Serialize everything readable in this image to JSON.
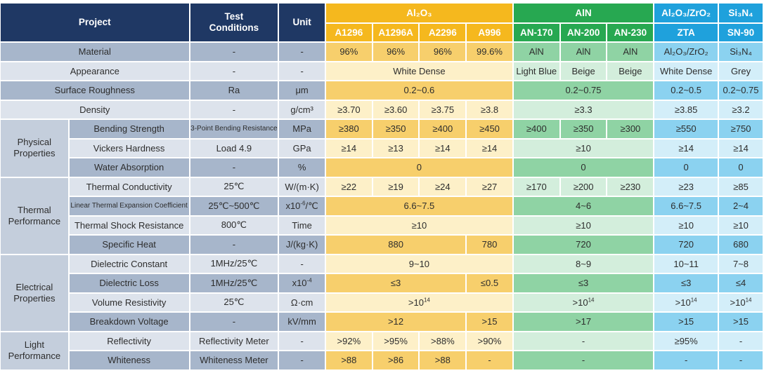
{
  "header": {
    "project": "Project",
    "test_conditions": "Test\nConditions",
    "unit": "Unit",
    "groups": [
      "Al₂O₃",
      "AlN",
      "Al₂O₃/ZrO₂",
      "Si₃N₄"
    ],
    "grades": [
      "A1296",
      "A1296A",
      "A2296",
      "A996",
      "AN-170",
      "AN-200",
      "AN-230",
      "ZTA",
      "SN-90"
    ]
  },
  "rows": {
    "material": {
      "label": "Material",
      "cond": "-",
      "unit": "-",
      "vals": [
        "96%",
        "96%",
        "96%",
        "99.6%",
        "AlN",
        "AlN",
        "AlN",
        "Al₂O₃/ZrO₂",
        "Si₃N₄"
      ]
    },
    "appearance": {
      "label": "Appearance",
      "cond": "-",
      "unit": "-",
      "vals": [
        "White Dense",
        "Light Blue",
        "Beige",
        "Beige",
        "White Dense",
        "Grey"
      ]
    },
    "roughness": {
      "label": "Surface Roughness",
      "cond": "Ra",
      "unit": "μm",
      "vals": [
        "0.2~0.6",
        "0.2~0.75",
        "0.2~0.5",
        "0.2~0.75"
      ]
    },
    "density": {
      "label": "Density",
      "cond": "-",
      "unit": "g/cm³",
      "vals": [
        "≥3.70",
        "≥3.60",
        "≥3.75",
        "≥3.8",
        "≥3.3",
        "≥3.85",
        "≥3.2"
      ]
    },
    "bending": {
      "label": "Bending Strength",
      "cond": "3-Point Bending Resistance",
      "unit": "MPa",
      "vals": [
        "≥380",
        "≥350",
        "≥400",
        "≥450",
        "≥400",
        "≥350",
        "≥300",
        "≥550",
        "≥750"
      ]
    },
    "vickers": {
      "label": "Vickers Hardness",
      "cond": "Load 4.9",
      "unit": "GPa",
      "vals": [
        "≥14",
        "≥13",
        "≥14",
        "≥14",
        "≥10",
        "≥14",
        "≥14"
      ]
    },
    "water": {
      "label": "Water Absorption",
      "cond": "-",
      "unit": "%",
      "vals": [
        "0",
        "0",
        "0",
        "0"
      ]
    },
    "thermal_cond": {
      "label": "Thermal Conductivity",
      "cond": "25℃",
      "unit": "W/(m·K)",
      "vals": [
        "≥22",
        "≥19",
        "≥24",
        "≥27",
        "≥170",
        "≥200",
        "≥230",
        "≥23",
        "≥85"
      ]
    },
    "expansion": {
      "label": "Linear Thermal Expansion Coefficient",
      "cond": "25℃~500℃",
      "unit_base": "x10",
      "unit_sup": "-6",
      "unit_tail": "/℃",
      "vals": [
        "6.6~7.5",
        "4~6",
        "6.6~7.5",
        "2~4"
      ]
    },
    "shock": {
      "label": "Thermal Shock Resistance",
      "cond": "800℃",
      "unit": "Time",
      "vals": [
        "≥10",
        "≥10",
        "≥10",
        "≥10"
      ]
    },
    "specific_heat": {
      "label": "Specific Heat",
      "cond": "-",
      "unit": "J/(kg·K)",
      "vals": [
        "880",
        "780",
        "720",
        "720",
        "680"
      ]
    },
    "dielectric_const": {
      "label": "Dielectric Constant",
      "cond": "1MHz/25℃",
      "unit": "-",
      "vals": [
        "9~10",
        "8~9",
        "10~11",
        "7~8"
      ]
    },
    "dielectric_loss": {
      "label": "Dielectric Loss",
      "cond": "1MHz/25℃",
      "unit_base": "x10",
      "unit_sup": "-4",
      "vals": [
        "≤3",
        "≤0.5",
        "≤3",
        "≤3",
        "≤4"
      ]
    },
    "resistivity": {
      "label": "Volume Resistivity",
      "cond": "25℃",
      "unit": "Ω·cm",
      "val_base": ">10",
      "val_sup": "14"
    },
    "breakdown": {
      "label": "Breakdown Voltage",
      "cond": "-",
      "unit": "kV/mm",
      "vals": [
        ">12",
        ">15",
        ">17",
        ">15",
        ">15"
      ]
    },
    "reflectivity": {
      "label": "Reflectivity",
      "cond": "Reflectivity Meter",
      "unit": "-",
      "vals": [
        ">92%",
        ">95%",
        ">88%",
        ">90%",
        "-",
        "≥95%",
        "-"
      ]
    },
    "whiteness": {
      "label": "Whiteness",
      "cond": "Whiteness Meter",
      "unit": "-",
      "vals": [
        ">88",
        ">86",
        ">88",
        "-",
        "-",
        "-",
        "-"
      ]
    }
  },
  "groups": {
    "physical": "Physical Properties",
    "thermal": "Thermal Performance",
    "electrical": "Electrical Properties",
    "light": "Light Performance"
  },
  "colors": {
    "navy": "#1f3864",
    "alumina": "#f5b81e",
    "aln": "#27a851",
    "zta_sn": "#1fa1dc"
  }
}
